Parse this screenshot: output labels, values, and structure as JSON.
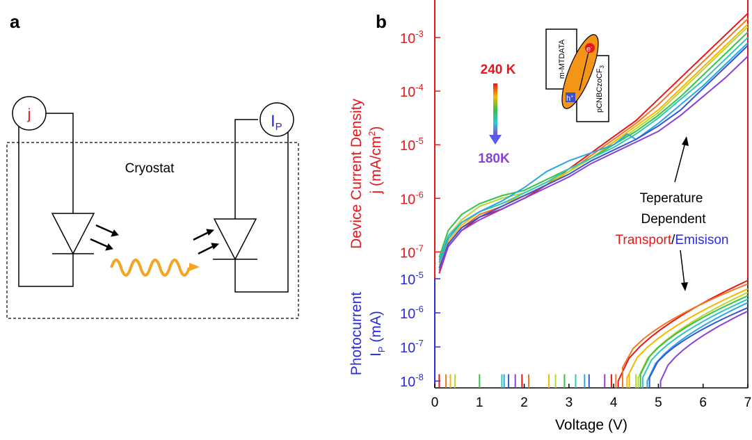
{
  "panel_a": {
    "label": "a",
    "cryostat_label": "Cryostat",
    "meter_j": "j",
    "meter_ip": "I",
    "meter_ip_sub": "P"
  },
  "panel_b": {
    "label": "b",
    "legend": {
      "top": "240 K",
      "bottom": "180K"
    },
    "inset": {
      "donor": "m-MTDATA",
      "acceptor": "pCNBCzoCF",
      "acceptor_sub": "3",
      "electron": "e",
      "electron_sup": "-",
      "hole": "h",
      "hole_sup": "+"
    },
    "annotation": {
      "line1": "Teperature",
      "line2": "Dependent",
      "word1": "Transport",
      "sep": "/",
      "word2": "Emisison"
    }
  },
  "chart_data": {
    "type": "line",
    "xlabel": "Voltage (V)",
    "xlim": [
      0,
      7
    ],
    "xticks": [
      "0",
      "1",
      "2",
      "3",
      "4",
      "5",
      "6",
      "7"
    ],
    "colors": {
      "current": "#e8161b",
      "photo": "#2a2adf",
      "annot_arrow": "#000000"
    },
    "series_colors": [
      "#e8161b",
      "#f0781e",
      "#f5b800",
      "#b8d630",
      "#35c24a",
      "#2fc7b8",
      "#2aa7e0",
      "#3456d6",
      "#8a3fd8"
    ],
    "top_panel": {
      "ylabel_line1": "Device Current Density",
      "ylabel_line2": "j (mA/cm",
      "ylabel_sup": "2",
      "ylabel_end": ")",
      "ylim_log10": [
        -7.5,
        -2.3
      ],
      "yticks": [
        {
          "base": "10",
          "exp": "-3"
        },
        {
          "base": "10",
          "exp": "-4"
        },
        {
          "base": "10",
          "exp": "-5"
        },
        {
          "base": "10",
          "exp": "-6"
        },
        {
          "base": "10",
          "exp": "-7"
        }
      ],
      "ytick_values_log10": [
        -3,
        -4,
        -5,
        -6,
        -7
      ],
      "series": [
        {
          "x": [
            0.1,
            0.3,
            0.6,
            1,
            1.5,
            2,
            2.5,
            3,
            3.5,
            4,
            4.5,
            5,
            5.5,
            6,
            6.5,
            7
          ],
          "log10y": [
            -7.4,
            -6.9,
            -6.6,
            -6.35,
            -6.2,
            -6.0,
            -5.75,
            -5.45,
            -5.15,
            -4.85,
            -4.55,
            -4.15,
            -3.75,
            -3.35,
            -2.95,
            -2.55
          ]
        },
        {
          "x": [
            0.1,
            0.3,
            0.6,
            1,
            1.5,
            2,
            2.5,
            3,
            3.5,
            4,
            4.5,
            5,
            5.5,
            6,
            6.5,
            7
          ],
          "log10y": [
            -7.3,
            -6.85,
            -6.55,
            -6.3,
            -6.15,
            -5.95,
            -5.75,
            -5.5,
            -5.2,
            -4.9,
            -4.6,
            -4.25,
            -3.85,
            -3.45,
            -3.05,
            -2.65
          ]
        },
        {
          "x": [
            0.1,
            0.3,
            0.6,
            1,
            1.5,
            2,
            2.5,
            3,
            3.5,
            4,
            4.5,
            5,
            5.5,
            6,
            6.5,
            7
          ],
          "log10y": [
            -7.25,
            -6.8,
            -6.5,
            -6.25,
            -6.1,
            -5.95,
            -5.75,
            -5.5,
            -5.25,
            -4.95,
            -4.65,
            -4.35,
            -3.95,
            -3.55,
            -3.15,
            -2.75
          ]
        },
        {
          "x": [
            0.1,
            0.3,
            0.6,
            1,
            1.5,
            2,
            2.5,
            3,
            3.5,
            4,
            4.5,
            5,
            5.5,
            6,
            6.5,
            7
          ],
          "log10y": [
            -7.2,
            -6.7,
            -6.4,
            -6.15,
            -6.0,
            -5.9,
            -5.7,
            -5.5,
            -5.25,
            -5.0,
            -4.7,
            -4.4,
            -4.0,
            -3.6,
            -3.2,
            -2.8
          ]
        },
        {
          "x": [
            0.1,
            0.3,
            0.6,
            1,
            1.5,
            2,
            2.5,
            3,
            3.5,
            4,
            4.5,
            5,
            5.5,
            6,
            6.5,
            7
          ],
          "log10y": [
            -7.1,
            -6.6,
            -6.3,
            -6.1,
            -5.95,
            -5.85,
            -5.65,
            -5.45,
            -5.25,
            -5.0,
            -4.75,
            -4.45,
            -4.1,
            -3.7,
            -3.3,
            -2.9
          ]
        },
        {
          "x": [
            0.1,
            0.3,
            0.6,
            1,
            1.5,
            2,
            2.5,
            3,
            3.5,
            4,
            4.5,
            5,
            5.5,
            6,
            6.5,
            7
          ],
          "log10y": [
            -7.15,
            -6.7,
            -6.45,
            -6.25,
            -6.1,
            -5.9,
            -5.7,
            -5.45,
            -5.25,
            -5.05,
            -4.8,
            -4.5,
            -4.15,
            -3.8,
            -3.4,
            -3.0
          ]
        },
        {
          "x": [
            0.1,
            0.3,
            0.6,
            1,
            1.5,
            2,
            2.5,
            3,
            3.5,
            4,
            4.3,
            4.5,
            5,
            5.5,
            6,
            6.5,
            7
          ],
          "log10y": [
            -7.2,
            -6.75,
            -6.45,
            -6.25,
            -6.05,
            -5.8,
            -5.5,
            -5.3,
            -5.15,
            -5.0,
            -4.8,
            -4.9,
            -4.6,
            -4.25,
            -3.9,
            -3.5,
            -3.1
          ]
        },
        {
          "x": [
            0.1,
            0.3,
            0.6,
            1,
            1.5,
            2,
            2.5,
            3,
            3.5,
            4,
            4.5,
            5,
            5.5,
            6,
            6.5,
            7
          ],
          "log10y": [
            -7.3,
            -6.85,
            -6.55,
            -6.35,
            -6.15,
            -5.95,
            -5.75,
            -5.55,
            -5.3,
            -5.1,
            -4.9,
            -4.65,
            -4.35,
            -3.95,
            -3.55,
            -3.15
          ]
        },
        {
          "x": [
            0.1,
            0.3,
            0.6,
            1,
            1.5,
            2,
            2.5,
            3,
            3.5,
            4,
            4.5,
            5,
            5.5,
            6,
            6.5,
            7
          ],
          "log10y": [
            -7.35,
            -6.9,
            -6.6,
            -6.4,
            -6.2,
            -6.0,
            -5.8,
            -5.6,
            -5.35,
            -5.15,
            -4.95,
            -4.75,
            -4.45,
            -4.1,
            -3.75,
            -3.35
          ]
        }
      ]
    },
    "bottom_panel": {
      "ylabel_line1": "Photocurrent",
      "ylabel_line2": "I",
      "ylabel_sub": "P",
      "ylabel_end": " (mA)",
      "ylim_log10": [
        -8.2,
        -5
      ],
      "yticks": [
        {
          "base": "10",
          "exp": "-5"
        },
        {
          "base": "10",
          "exp": "-6"
        },
        {
          "base": "10",
          "exp": "-7"
        },
        {
          "base": "10",
          "exp": "-8"
        }
      ],
      "ytick_values_log10": [
        -5,
        -6,
        -7,
        -8
      ],
      "noise_x": [
        0.1,
        0.25,
        0.35,
        0.45,
        1.0,
        1.5,
        1.55,
        1.65,
        1.8,
        1.95,
        2.1,
        2.55,
        2.7,
        2.9,
        3.15,
        3.35,
        3.45,
        3.8,
        3.95,
        4.05,
        4.35,
        4.5
      ],
      "series_onset_x": [
        4.1,
        4.2,
        4.3,
        4.55,
        4.6,
        4.65,
        4.75,
        4.8,
        5.05
      ],
      "series_onset_log10y": [
        -8.0,
        -7.6,
        -7.9,
        -7.9,
        -7.8,
        -7.9,
        -8.0,
        -7.9,
        -8.0
      ],
      "series_end_log10y": [
        -5.05,
        -5.15,
        -5.3,
        -5.4,
        -5.5,
        -5.6,
        -5.7,
        -5.85,
        -5.95
      ]
    }
  }
}
